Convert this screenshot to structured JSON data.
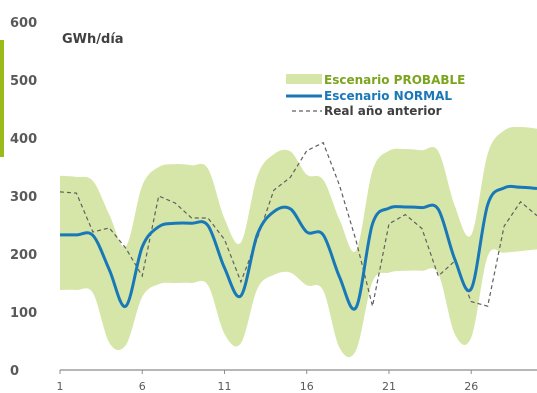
{
  "chart_data": {
    "type": "area",
    "unit_label": "GWh/día",
    "ylim": [
      0,
      600
    ],
    "y_ticks": [
      "0",
      "100",
      "200",
      "300",
      "400",
      "500",
      "600"
    ],
    "xlim": [
      1,
      30
    ],
    "x_ticks": [
      "1",
      "6",
      "11",
      "16",
      "21",
      "26"
    ],
    "grid": false,
    "legend_position": "top-right",
    "x": [
      1,
      2,
      3,
      4,
      5,
      6,
      7,
      8,
      9,
      10,
      11,
      12,
      13,
      14,
      15,
      16,
      17,
      18,
      19,
      20,
      21,
      22,
      23,
      24,
      25,
      26,
      27,
      28,
      29,
      30
    ],
    "series": [
      {
        "name": "Escenario PROBABLE",
        "kind": "band",
        "color": "#d6e6a8",
        "upper": [
          335,
          333,
          326,
          268,
          213,
          318,
          350,
          355,
          353,
          347,
          261,
          220,
          335,
          372,
          377,
          337,
          328,
          259,
          206,
          344,
          378,
          381,
          379,
          377,
          283,
          233,
          373,
          413,
          419,
          416
        ],
        "lower": [
          138,
          138,
          133,
          47,
          43,
          126,
          148,
          150,
          150,
          146,
          62,
          46,
          140,
          164,
          168,
          146,
          137,
          38,
          34,
          152,
          168,
          171,
          171,
          166,
          62,
          56,
          196,
          202,
          205,
          208
        ]
      },
      {
        "name": "Escenario NORMAL",
        "kind": "line",
        "color": "#1878b8",
        "values": [
          233,
          233,
          232,
          173,
          110,
          212,
          247,
          253,
          253,
          249,
          176,
          128,
          234,
          273,
          278,
          238,
          233,
          160,
          108,
          252,
          279,
          281,
          280,
          277,
          191,
          140,
          285,
          314,
          315,
          313
        ]
      },
      {
        "name": "Real año anterior",
        "kind": "dashed",
        "color": "#606060",
        "values": [
          307,
          305,
          238,
          245,
          210,
          162,
          300,
          288,
          262,
          262,
          225,
          152,
          227,
          310,
          332,
          378,
          392,
          318,
          223,
          110,
          252,
          268,
          244,
          162,
          188,
          118,
          110,
          248,
          290,
          266
        ]
      }
    ]
  },
  "colors": {
    "accent": "#9bbb1a",
    "axis": "#8c8c8c"
  }
}
